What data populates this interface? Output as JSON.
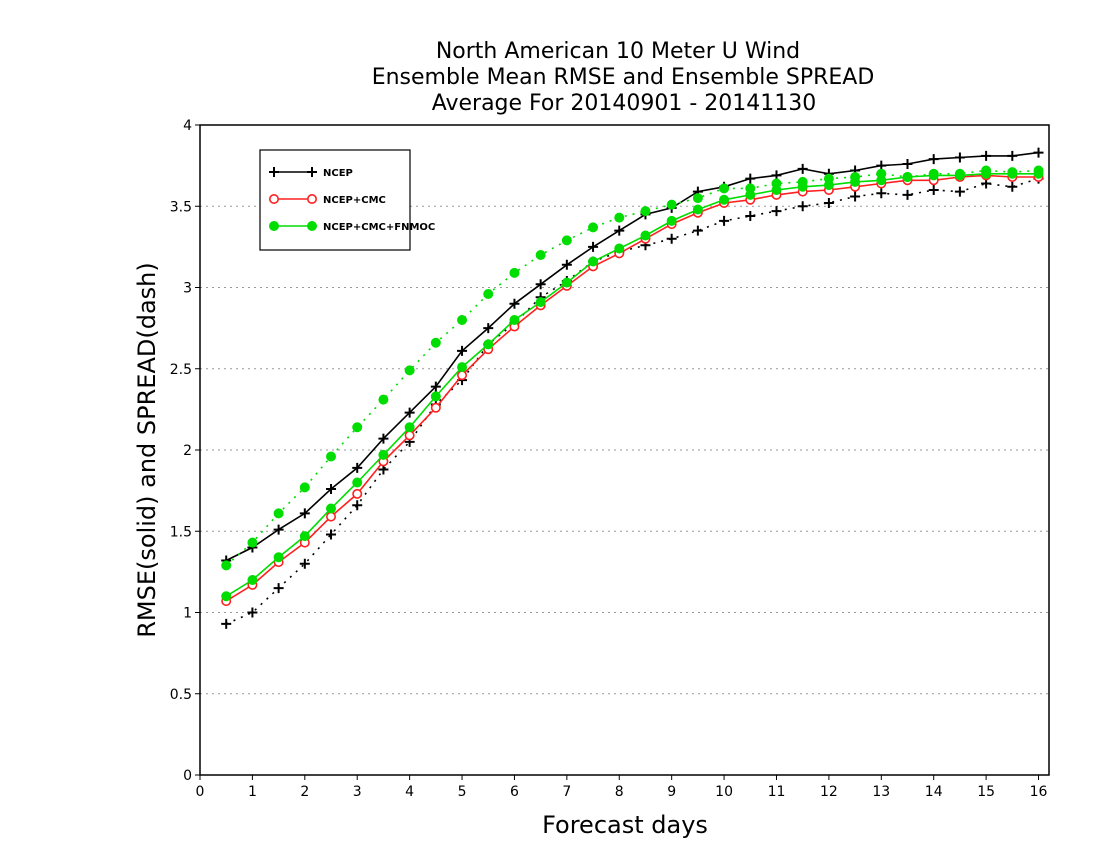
{
  "chart_data": {
    "type": "line",
    "title_lines": [
      "North American 10 Meter U Wind",
      "Ensemble Mean RMSE and Ensemble SPREAD",
      "Average For 20140901 - 20141130"
    ],
    "xlabel": "Forecast days",
    "ylabel": "RMSE(solid) and SPREAD(dash)",
    "xlim": [
      0,
      16.2
    ],
    "ylim": [
      0,
      4
    ],
    "xticks": [
      0,
      1,
      2,
      3,
      4,
      5,
      6,
      7,
      8,
      9,
      10,
      11,
      12,
      13,
      14,
      15,
      16
    ],
    "yticks": [
      0,
      0.5,
      1,
      1.5,
      2,
      2.5,
      3,
      3.5,
      4
    ],
    "ytick_labels": [
      "0",
      "0.5",
      "1",
      "1.5",
      "2",
      "2.5",
      "3",
      "3.5",
      "4"
    ],
    "grid": "horizontal dotted",
    "legend_position": "top-left",
    "x": [
      0.5,
      1,
      1.5,
      2,
      2.5,
      3,
      3.5,
      4,
      4.5,
      5,
      5.5,
      6,
      6.5,
      7,
      7.5,
      8,
      8.5,
      9,
      9.5,
      10,
      10.5,
      11,
      11.5,
      12,
      12.5,
      13,
      13.5,
      14,
      14.5,
      15,
      15.5,
      16
    ],
    "series": [
      {
        "name": "NCEP",
        "color": "#000000",
        "marker": "plus",
        "rmse": [
          1.32,
          1.4,
          1.51,
          1.61,
          1.76,
          1.89,
          2.07,
          2.23,
          2.39,
          2.61,
          2.75,
          2.9,
          3.02,
          3.14,
          3.25,
          3.35,
          3.45,
          3.49,
          3.59,
          3.62,
          3.67,
          3.69,
          3.73,
          3.7,
          3.72,
          3.75,
          3.76,
          3.79,
          3.8,
          3.81,
          3.81,
          3.83
        ],
        "spread": [
          0.93,
          1.0,
          1.15,
          1.3,
          1.48,
          1.66,
          1.88,
          2.05,
          2.28,
          2.43,
          2.65,
          2.78,
          2.94,
          3.04,
          3.16,
          3.22,
          3.26,
          3.3,
          3.35,
          3.41,
          3.44,
          3.47,
          3.5,
          3.52,
          3.56,
          3.58,
          3.57,
          3.6,
          3.59,
          3.64,
          3.62,
          3.67
        ]
      },
      {
        "name": "NCEP+CMC",
        "color": "#ff2020",
        "marker": "open-circle",
        "rmse": [
          1.07,
          1.17,
          1.31,
          1.43,
          1.59,
          1.73,
          1.93,
          2.09,
          2.26,
          2.46,
          2.62,
          2.76,
          2.89,
          3.01,
          3.13,
          3.21,
          3.3,
          3.39,
          3.46,
          3.52,
          3.54,
          3.57,
          3.59,
          3.6,
          3.62,
          3.64,
          3.66,
          3.66,
          3.68,
          3.69,
          3.68,
          3.68
        ]
      },
      {
        "name": "NCEP+CMC+FNMOC",
        "color": "#00dd00",
        "marker": "filled-circle",
        "rmse": [
          1.1,
          1.2,
          1.34,
          1.47,
          1.64,
          1.8,
          1.97,
          2.14,
          2.33,
          2.51,
          2.65,
          2.8,
          2.91,
          3.03,
          3.16,
          3.24,
          3.32,
          3.41,
          3.48,
          3.54,
          3.57,
          3.6,
          3.62,
          3.63,
          3.65,
          3.66,
          3.68,
          3.69,
          3.69,
          3.7,
          3.7,
          3.7
        ],
        "spread": [
          1.29,
          1.43,
          1.61,
          1.77,
          1.96,
          2.14,
          2.31,
          2.49,
          2.66,
          2.8,
          2.96,
          3.09,
          3.2,
          3.29,
          3.37,
          3.43,
          3.47,
          3.51,
          3.55,
          3.61,
          3.61,
          3.64,
          3.65,
          3.67,
          3.68,
          3.7,
          3.68,
          3.7,
          3.7,
          3.72,
          3.71,
          3.72
        ]
      }
    ]
  }
}
